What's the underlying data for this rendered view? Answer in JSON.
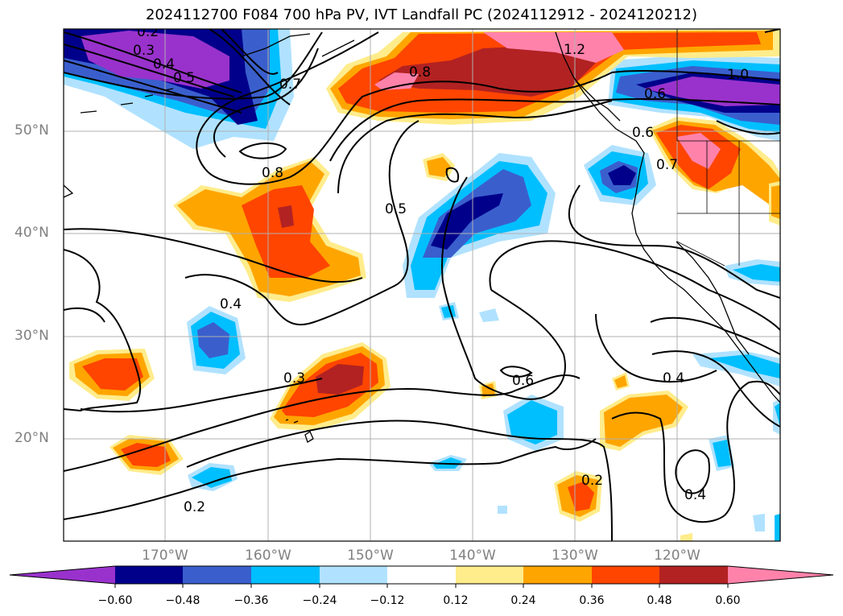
{
  "title": "2024112700 F084 700 hPa PV, IVT Landfall PC (2024112912 - 2024120212)",
  "lat_labels": [
    "50°N",
    "40°N",
    "30°N",
    "20°N"
  ],
  "lon_labels": [
    "170°W",
    "160°W",
    "150°W",
    "140°W",
    "130°W",
    "120°W"
  ],
  "contour_labels": [
    "0.2",
    "0.3",
    "0.4",
    "0.5",
    "0.7",
    "0.8",
    "0.8",
    "1.2",
    "1.0",
    "0.6",
    "0.6",
    "0.7",
    "0.5",
    "0.4",
    "0.3",
    "0.6",
    "0.4",
    "0.2",
    "0.4",
    "0.2"
  ],
  "colorbar": {
    "ticks": [
      "−0.60",
      "−0.48",
      "−0.36",
      "−0.24",
      "−0.12",
      "0.12",
      "0.24",
      "0.36",
      "0.48",
      "0.60"
    ],
    "colors": [
      "#9932cc",
      "#00008b",
      "#3a5fcd",
      "#00bfff",
      "#b0e2ff",
      "#ffffff",
      "#ffec8b",
      "#ffa500",
      "#ff4500",
      "#b22222",
      "#ff82ab"
    ]
  },
  "legend_colors": {
    "neg_low": "#b0e2ff",
    "neg_mid": "#00bfff",
    "neg_strong": "#3a5fcd",
    "neg_vstrong": "#00008b",
    "neg_extreme": "#9932cc",
    "pos_low": "#ffec8b",
    "pos_mid": "#ffa500",
    "pos_strong": "#ff4500",
    "pos_vstrong": "#b22222",
    "pos_extreme": "#ff82ab"
  }
}
